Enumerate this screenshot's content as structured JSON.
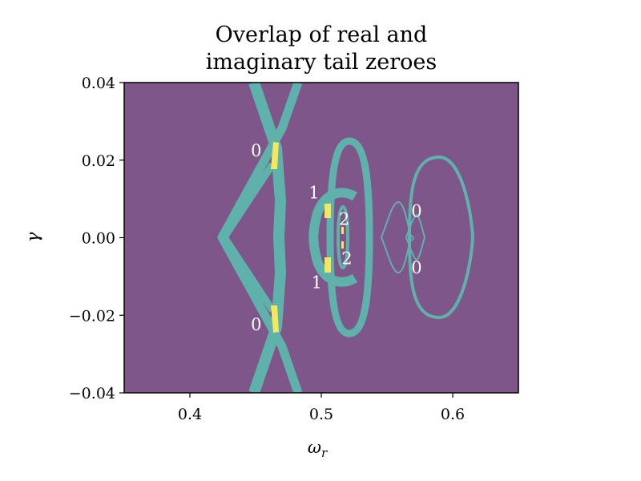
{
  "chart_data": {
    "type": "heatmap",
    "title_lines": [
      "Overlap of real and",
      "imaginary tail zeroes"
    ],
    "xlabel": "ω",
    "xlabel_sub": "r",
    "ylabel": "γ",
    "xlim": [
      0.35,
      0.65
    ],
    "ylim": [
      -0.04,
      0.04
    ],
    "xticks": [
      {
        "value": 0.4,
        "label": "0.4"
      },
      {
        "value": 0.5,
        "label": "0.5"
      },
      {
        "value": 0.6,
        "label": "0.6"
      }
    ],
    "yticks": [
      {
        "value": 0.04,
        "label": "0.04"
      },
      {
        "value": 0.02,
        "label": "0.02"
      },
      {
        "value": 0.0,
        "label": "0.00"
      },
      {
        "value": -0.02,
        "label": "−0.02"
      },
      {
        "value": -0.04,
        "label": "−0.04"
      }
    ],
    "colors": {
      "background": "#7e5689",
      "single_zero": "#5fb1ab",
      "overlap": "#f2e85f"
    },
    "annotations": [
      {
        "text": "0",
        "x": 0.4505,
        "y": 0.0224
      },
      {
        "text": "0",
        "x": 0.4505,
        "y": -0.0224
      },
      {
        "text": "1",
        "x": 0.4945,
        "y": 0.0116
      },
      {
        "text": "1",
        "x": 0.4965,
        "y": -0.0116
      },
      {
        "text": "2",
        "x": 0.5175,
        "y": 0.0048
      },
      {
        "text": "2",
        "x": 0.5195,
        "y": -0.0054
      },
      {
        "text": "0",
        "x": 0.5725,
        "y": 0.0068
      },
      {
        "text": "0",
        "x": 0.5725,
        "y": -0.0078
      }
    ]
  }
}
